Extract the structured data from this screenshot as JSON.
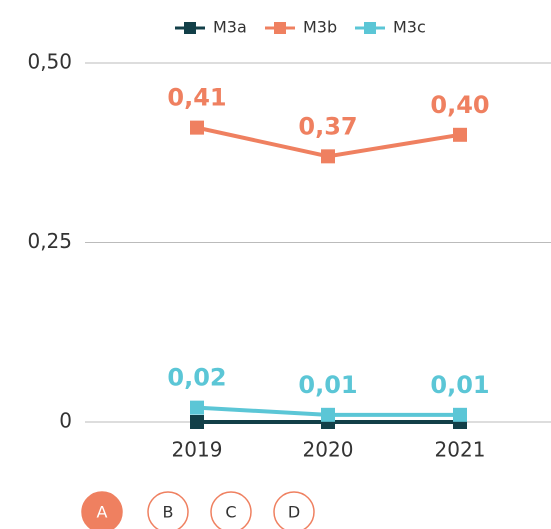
{
  "chart_data": {
    "type": "line",
    "categories": [
      "2019",
      "2020",
      "2021"
    ],
    "series": [
      {
        "name": "M3a",
        "color": "#123f48",
        "values": [
          0,
          0,
          0
        ]
      },
      {
        "name": "M3b",
        "color": "#ef8060",
        "values": [
          0.41,
          0.37,
          0.4
        ],
        "value_labels": [
          "0,41",
          "0,37",
          "0,40"
        ]
      },
      {
        "name": "M3c",
        "color": "#5bc6d6",
        "values": [
          0.02,
          0.01,
          0.01
        ],
        "value_labels": [
          "0,02",
          "0,01",
          "0,01"
        ]
      }
    ],
    "ylim": [
      0,
      0.5
    ],
    "yticks": [
      0,
      {
        "value": 0.25,
        "label": "0,25"
      },
      {
        "value": 0.5,
        "label": "0,50"
      }
    ],
    "grid": true,
    "legend": "top"
  },
  "buttons": [
    "A",
    "B",
    "C",
    "D"
  ]
}
